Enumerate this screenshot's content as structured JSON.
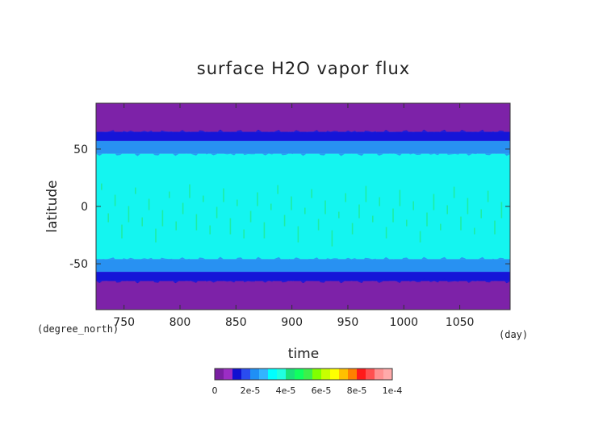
{
  "chart_data": {
    "type": "heatmap",
    "title": "surface H2O vapor flux",
    "xlabel": "time",
    "ylabel": "latitude",
    "x_units": "(day)",
    "y_units": "(degree_north)",
    "xlim": [
      725,
      1095
    ],
    "ylim": [
      -90,
      90
    ],
    "x_ticks": [
      750,
      800,
      850,
      900,
      950,
      1000,
      1050
    ],
    "y_ticks": [
      -50,
      0,
      50
    ],
    "bands": [
      {
        "lat_from": 65,
        "lat_to": 90,
        "level": 0
      },
      {
        "lat_from": 57,
        "lat_to": 65,
        "level": 1
      },
      {
        "lat_from": 46,
        "lat_to": 57,
        "level": 2
      },
      {
        "lat_from": -46,
        "lat_to": 46,
        "level": 3
      },
      {
        "lat_from": -57,
        "lat_to": -46,
        "level": 2
      },
      {
        "lat_from": -65,
        "lat_to": -57,
        "level": 1
      },
      {
        "lat_from": -90,
        "lat_to": -65,
        "level": 0
      }
    ],
    "colorbar": {
      "colors": [
        "#7a1fa2",
        "#9b2dc4",
        "#1010d0",
        "#2a4cf0",
        "#1f8ff5",
        "#33b4ff",
        "#00ffff",
        "#20ffe0",
        "#19e27a",
        "#10ff60",
        "#3cf04a",
        "#80ff00",
        "#c8ff00",
        "#ffff00",
        "#ffc000",
        "#ff8000",
        "#ff1a1a",
        "#ff5050",
        "#ff9090",
        "#ffaaaa"
      ],
      "tick_labels": [
        "0",
        "2e-5",
        "4e-5",
        "6e-5",
        "8e-5",
        "1e-4"
      ]
    }
  }
}
